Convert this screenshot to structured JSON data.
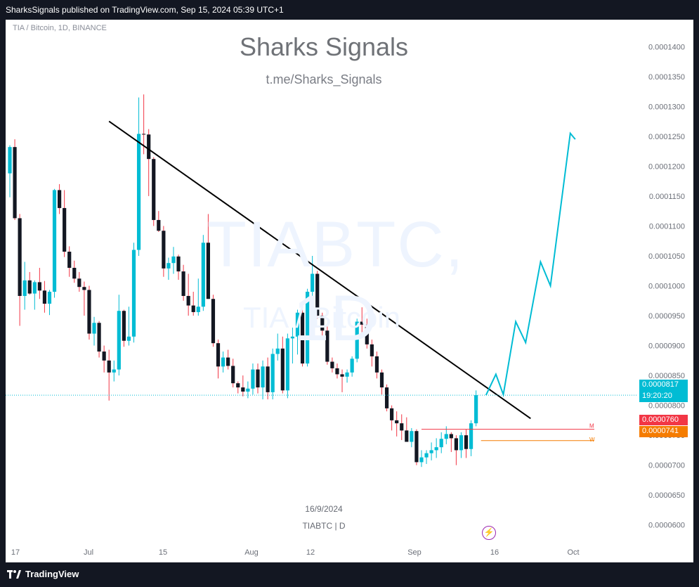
{
  "header": {
    "publish_line": "SharksSignals published on TradingView.com, Sep 15, 2024 05:39 UTC+1"
  },
  "chart_header": {
    "pair": "TIA / Bitcoin, 1D, BINANCE",
    "title": "Sharks Signals",
    "subtitle": "t.me/Sharks_Signals",
    "watermark_symbol": "TIABTC, 1D",
    "watermark_name": "TIA / Bitcoin"
  },
  "annotations": {
    "date_label": "16/9/2024",
    "symbol_label": "TIABTC  |  D"
  },
  "price_tags": {
    "last_price": "0.0000817",
    "countdown": "19:20:20",
    "m_price": "0.0000760",
    "w_price": "0.0000741",
    "m_marker": "M",
    "w_marker": "W"
  },
  "footer": {
    "brand": "TradingView"
  },
  "colors": {
    "up": "#00bcd4",
    "down": "#131722",
    "trendline": "#000000",
    "projection": "#00bcd4",
    "m_line": "#f23645",
    "w_line": "#f57c00",
    "axis_text": "#6b6f78"
  },
  "icons": {
    "flash": "lightning-icon",
    "logo": "tradingview-logo-icon"
  },
  "chart_data": {
    "type": "candlestick",
    "ylim": [
      5.75e-05,
      0.0001445
    ],
    "y_ticks": [
      "0.0001400",
      "0.0001350",
      "0.0001300",
      "0.0001250",
      "0.0001200",
      "0.0001150",
      "0.0001100",
      "0.0001050",
      "0.0001000",
      "0.0000950",
      "0.0000900",
      "0.0000850",
      "0.0000800",
      "0.0000750",
      "0.0000700",
      "0.0000650",
      "0.0000600"
    ],
    "x_ticks": [
      "17",
      "Jul",
      "15",
      "Aug",
      "12",
      "Sep",
      "16",
      "Oct"
    ],
    "candles": [
      {
        "o": 0.0001188,
        "h": 0.0001235,
        "l": 0.0001148,
        "c": 0.0001232
      },
      {
        "o": 0.0001232,
        "h": 0.0001245,
        "l": 0.000111,
        "c": 0.0001113
      },
      {
        "o": 0.0001113,
        "h": 0.000112,
        "l": 9.33e-05,
        "c": 9.83e-05
      },
      {
        "o": 9.83e-05,
        "h": 0.000104,
        "l": 9.6e-05,
        "c": 0.0001009
      },
      {
        "o": 0.0001009,
        "h": 0.0001023,
        "l": 9.85e-05,
        "c": 9.87e-05
      },
      {
        "o": 9.87e-05,
        "h": 0.0001009,
        "l": 9.6e-05,
        "c": 0.0001006
      },
      {
        "o": 0.0001006,
        "h": 0.000103,
        "l": 9.78e-05,
        "c": 9.92e-05
      },
      {
        "o": 9.92e-05,
        "h": 0.0001008,
        "l": 9.55e-05,
        "c": 9.7e-05
      },
      {
        "o": 9.7e-05,
        "h": 9.93e-05,
        "l": 9.51e-05,
        "c": 9.9e-05
      },
      {
        "o": 9.9e-05,
        "h": 0.0001162,
        "l": 9.8e-05,
        "c": 0.000116
      },
      {
        "o": 0.000116,
        "h": 0.000117,
        "l": 0.000112,
        "c": 0.000113
      },
      {
        "o": 0.000113,
        "h": 0.000116,
        "l": 0.0001048,
        "c": 0.0001057
      },
      {
        "o": 0.0001057,
        "h": 0.0001066,
        "l": 0.0001015,
        "c": 0.000103
      },
      {
        "o": 0.000103,
        "h": 0.0001042,
        "l": 0.0001005,
        "c": 0.0001012
      },
      {
        "o": 0.0001012,
        "h": 0.0001023,
        "l": 9.9e-05,
        "c": 9.98e-05
      },
      {
        "o": 9.98e-05,
        "h": 0.0001007,
        "l": 9.5e-05,
        "c": 9.93e-05
      },
      {
        "o": 9.93e-05,
        "h": 0.0001,
        "l": 9.1e-05,
        "c": 9.2e-05
      },
      {
        "o": 9.2e-05,
        "h": 9.48e-05,
        "l": 9e-05,
        "c": 9.38e-05
      },
      {
        "o": 9.38e-05,
        "h": 9.41e-05,
        "l": 8.8e-05,
        "c": 8.9e-05
      },
      {
        "o": 8.9e-05,
        "h": 9e-05,
        "l": 8.55e-05,
        "c": 8.75e-05
      },
      {
        "o": 8.75e-05,
        "h": 8.93e-05,
        "l": 8.08e-05,
        "c": 8.55e-05
      },
      {
        "o": 8.55e-05,
        "h": 8.75e-05,
        "l": 8.4e-05,
        "c": 8.6e-05
      },
      {
        "o": 8.6e-05,
        "h": 9.85e-05,
        "l": 8.5e-05,
        "c": 9.58e-05
      },
      {
        "o": 9.58e-05,
        "h": 9.6e-05,
        "l": 8.98e-05,
        "c": 9.08e-05
      },
      {
        "o": 9.08e-05,
        "h": 9.65e-05,
        "l": 9e-05,
        "c": 9.15e-05
      },
      {
        "o": 9.15e-05,
        "h": 0.0001072,
        "l": 9.05e-05,
        "c": 0.000106
      },
      {
        "o": 0.000106,
        "h": 0.0001315,
        "l": 0.000105,
        "c": 0.0001254
      },
      {
        "o": 0.0001254,
        "h": 0.000132,
        "l": 0.000122,
        "c": 0.0001253
      },
      {
        "o": 0.0001253,
        "h": 0.0001262,
        "l": 0.000115,
        "c": 0.0001212
      },
      {
        "o": 0.0001212,
        "h": 0.0001215,
        "l": 0.00011,
        "c": 0.000111
      },
      {
        "o": 0.000111,
        "h": 0.0001125,
        "l": 0.000109,
        "c": 0.0001092
      },
      {
        "o": 0.0001092,
        "h": 0.00011,
        "l": 0.0001015,
        "c": 0.0001029
      },
      {
        "o": 0.0001029,
        "h": 0.0001047,
        "l": 0.000101,
        "c": 0.0001038
      },
      {
        "o": 0.0001038,
        "h": 0.0001065,
        "l": 0.000102,
        "c": 0.0001049
      },
      {
        "o": 0.0001049,
        "h": 0.0001052,
        "l": 0.000101,
        "c": 0.0001024
      },
      {
        "o": 0.0001024,
        "h": 0.0001035,
        "l": 9.75e-05,
        "c": 9.83e-05
      },
      {
        "o": 9.83e-05,
        "h": 0.000102,
        "l": 9.5e-05,
        "c": 9.67e-05
      },
      {
        "o": 9.67e-05,
        "h": 9.9e-05,
        "l": 9.5e-05,
        "c": 9.56e-05
      },
      {
        "o": 9.56e-05,
        "h": 0.0001012,
        "l": 9.5e-05,
        "c": 9.65e-05
      },
      {
        "o": 9.65e-05,
        "h": 0.0001085,
        "l": 9.58e-05,
        "c": 0.0001072
      },
      {
        "o": 0.0001072,
        "h": 0.000112,
        "l": 9.78e-05,
        "c": 9.78e-05
      },
      {
        "o": 9.78e-05,
        "h": 9.85e-05,
        "l": 8.98e-05,
        "c": 9.04e-05
      },
      {
        "o": 9.04e-05,
        "h": 9.1e-05,
        "l": 8.45e-05,
        "c": 8.65e-05
      },
      {
        "o": 8.65e-05,
        "h": 8.9e-05,
        "l": 8.55e-05,
        "c": 8.8e-05
      },
      {
        "o": 8.8e-05,
        "h": 8.93e-05,
        "l": 8.6e-05,
        "c": 8.66e-05
      },
      {
        "o": 8.66e-05,
        "h": 8.78e-05,
        "l": 8.3e-05,
        "c": 8.37e-05
      },
      {
        "o": 8.37e-05,
        "h": 8.4e-05,
        "l": 8.2e-05,
        "c": 8.3e-05
      },
      {
        "o": 8.3e-05,
        "h": 8.5e-05,
        "l": 8.15e-05,
        "c": 8.23e-05
      },
      {
        "o": 8.23e-05,
        "h": 8.4e-05,
        "l": 8.12e-05,
        "c": 8.28e-05
      },
      {
        "o": 8.28e-05,
        "h": 8.7e-05,
        "l": 8.18e-05,
        "c": 8.6e-05
      },
      {
        "o": 8.6e-05,
        "h": 8.7e-05,
        "l": 8.2e-05,
        "c": 8.3e-05
      },
      {
        "o": 8.3e-05,
        "h": 8.75e-05,
        "l": 8.1e-05,
        "c": 8.65e-05
      },
      {
        "o": 8.65e-05,
        "h": 8.8e-05,
        "l": 8.1e-05,
        "c": 8.22e-05
      },
      {
        "o": 8.22e-05,
        "h": 8.95e-05,
        "l": 8.1e-05,
        "c": 8.86e-05
      },
      {
        "o": 8.86e-05,
        "h": 9.2e-05,
        "l": 8.75e-05,
        "c": 8.95e-05
      },
      {
        "o": 8.95e-05,
        "h": 9.15e-05,
        "l": 8.2e-05,
        "c": 8.25e-05
      },
      {
        "o": 8.25e-05,
        "h": 9.2e-05,
        "l": 8.12e-05,
        "c": 9.12e-05
      },
      {
        "o": 9.12e-05,
        "h": 9.3e-05,
        "l": 8.7e-05,
        "c": 9.15e-05
      },
      {
        "o": 9.15e-05,
        "h": 9.6e-05,
        "l": 8.85e-05,
        "c": 9.55e-05
      },
      {
        "o": 9.55e-05,
        "h": 9.6e-05,
        "l": 8.65e-05,
        "c": 8.7e-05
      },
      {
        "o": 8.7e-05,
        "h": 9.95e-05,
        "l": 8.65e-05,
        "c": 9.9e-05
      },
      {
        "o": 9.9e-05,
        "h": 0.000105,
        "l": 9.75e-05,
        "c": 0.000102
      },
      {
        "o": 0.000102,
        "h": 0.0001025,
        "l": 9.45e-05,
        "c": 9.5e-05
      },
      {
        "o": 9.5e-05,
        "h": 9.55e-05,
        "l": 9.15e-05,
        "c": 9.25e-05
      },
      {
        "o": 9.25e-05,
        "h": 9.35e-05,
        "l": 8.68e-05,
        "c": 8.73e-05
      },
      {
        "o": 8.73e-05,
        "h": 8.8e-05,
        "l": 8.55e-05,
        "c": 8.62e-05
      },
      {
        "o": 8.62e-05,
        "h": 8.7e-05,
        "l": 8.45e-05,
        "c": 8.52e-05
      },
      {
        "o": 8.52e-05,
        "h": 8.6e-05,
        "l": 8.22e-05,
        "c": 8.48e-05
      },
      {
        "o": 8.48e-05,
        "h": 8.6e-05,
        "l": 8.38e-05,
        "c": 8.55e-05
      },
      {
        "o": 8.55e-05,
        "h": 8.82e-05,
        "l": 8.48e-05,
        "c": 8.78e-05
      },
      {
        "o": 8.78e-05,
        "h": 9.45e-05,
        "l": 8.72e-05,
        "c": 9.4e-05
      },
      {
        "o": 9.4e-05,
        "h": 9.64e-05,
        "l": 9.2e-05,
        "c": 9.35e-05
      },
      {
        "o": 9.35e-05,
        "h": 9.45e-05,
        "l": 8.95e-05,
        "c": 9.02e-05
      },
      {
        "o": 9.02e-05,
        "h": 9.1e-05,
        "l": 8.65e-05,
        "c": 8.82e-05
      },
      {
        "o": 8.82e-05,
        "h": 8.9e-05,
        "l": 8.45e-05,
        "c": 8.55e-05
      },
      {
        "o": 8.55e-05,
        "h": 8.6e-05,
        "l": 8.18e-05,
        "c": 8.3e-05
      },
      {
        "o": 8.3e-05,
        "h": 8.35e-05,
        "l": 7.9e-05,
        "c": 7.95e-05
      },
      {
        "o": 7.95e-05,
        "h": 8e-05,
        "l": 7.58e-05,
        "c": 7.75e-05
      },
      {
        "o": 7.75e-05,
        "h": 7.9e-05,
        "l": 7.48e-05,
        "c": 7.7e-05
      },
      {
        "o": 7.7e-05,
        "h": 7.85e-05,
        "l": 7.42e-05,
        "c": 7.58e-05
      },
      {
        "o": 7.58e-05,
        "h": 7.8e-05,
        "l": 7.42e-05,
        "c": 7.39e-05
      },
      {
        "o": 7.39e-05,
        "h": 7.62e-05,
        "l": 7.3e-05,
        "c": 7.57e-05
      },
      {
        "o": 7.57e-05,
        "h": 7.6e-05,
        "l": 7e-05,
        "c": 7.05e-05
      },
      {
        "o": 7.05e-05,
        "h": 7.25e-05,
        "l": 6.97e-05,
        "c": 7.13e-05
      },
      {
        "o": 7.13e-05,
        "h": 7.25e-05,
        "l": 7.02e-05,
        "c": 7.2e-05
      },
      {
        "o": 7.2e-05,
        "h": 7.38e-05,
        "l": 7.08e-05,
        "c": 7.25e-05
      },
      {
        "o": 7.25e-05,
        "h": 7.45e-05,
        "l": 7.12e-05,
        "c": 7.3e-05
      },
      {
        "o": 7.3e-05,
        "h": 7.55e-05,
        "l": 7.2e-05,
        "c": 7.44e-05
      },
      {
        "o": 7.44e-05,
        "h": 7.65e-05,
        "l": 7.35e-05,
        "c": 7.52e-05
      },
      {
        "o": 7.52e-05,
        "h": 7.55e-05,
        "l": 7.22e-05,
        "c": 7.45e-05
      },
      {
        "o": 7.45e-05,
        "h": 7.5e-05,
        "l": 7e-05,
        "c": 7.25e-05
      },
      {
        "o": 7.25e-05,
        "h": 7.55e-05,
        "l": 7.12e-05,
        "c": 7.5e-05
      },
      {
        "o": 7.5e-05,
        "h": 7.6e-05,
        "l": 7.12e-05,
        "c": 7.27e-05
      },
      {
        "o": 7.27e-05,
        "h": 7.75e-05,
        "l": 7.15e-05,
        "c": 7.7e-05
      },
      {
        "o": 7.7e-05,
        "h": 8.25e-05,
        "l": 7.65e-05,
        "c": 8.17e-05
      }
    ],
    "lines": {
      "trendline": {
        "from": {
          "candle": 20,
          "price": 0.0001275
        },
        "to": {
          "candle": 105,
          "price": 7.78e-05
        }
      },
      "m_level": 7.6e-05,
      "w_level": 7.41e-05,
      "last_price": 8.17e-05
    },
    "projection": [
      {
        "candle": 96,
        "price": 8.17e-05
      },
      {
        "candle": 98,
        "price": 8.52e-05
      },
      {
        "candle": 99.5,
        "price": 8.18e-05
      },
      {
        "candle": 102,
        "price": 9.4e-05
      },
      {
        "candle": 104,
        "price": 9.05e-05
      },
      {
        "candle": 107,
        "price": 0.000104
      },
      {
        "candle": 109,
        "price": 0.0001
      },
      {
        "candle": 113,
        "price": 0.0001255
      },
      {
        "candle": 114,
        "price": 0.0001245
      }
    ]
  }
}
